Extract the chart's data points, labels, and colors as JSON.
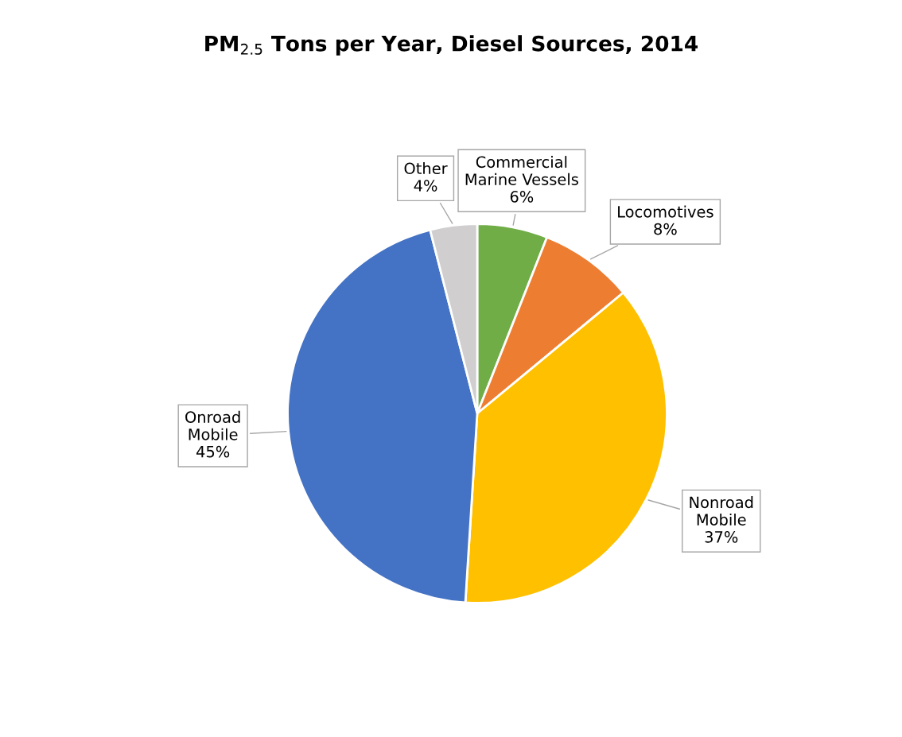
{
  "chart_data": {
    "type": "pie",
    "title": "PM$_{2.5}$ Tons per Year, Diesel Sources, 2014",
    "categories": [
      "Commercial Marine Vessels",
      "Locomotives",
      "Nonroad Mobile",
      "Onroad Mobile",
      "Other"
    ],
    "values": [
      6,
      8,
      37,
      45,
      4
    ],
    "value_labels": [
      "6%",
      "8%",
      "37%",
      "45%",
      "4%"
    ],
    "colors": [
      "#70ad47",
      "#ed7d31",
      "#ffc000",
      "#4472c4",
      "#d0cece"
    ]
  }
}
